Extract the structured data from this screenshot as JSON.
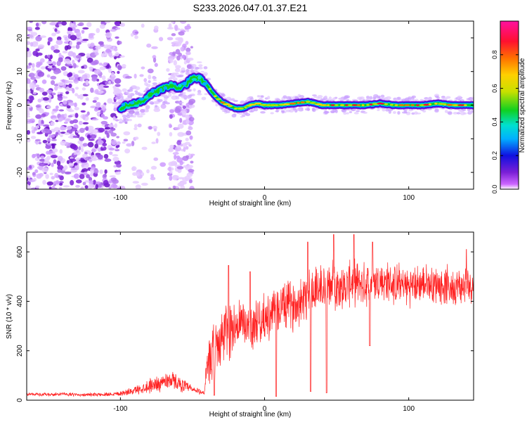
{
  "figure_title": "S233.2026.047.01.37.E21",
  "chart_data": [
    {
      "type": "heatmap",
      "title": "S233.2026.047.01.37.E21",
      "xlabel": "Height of straight line (km)",
      "ylabel": "Frequency (Hz)",
      "xlim": [
        -165,
        145
      ],
      "ylim": [
        -25,
        25
      ],
      "xticks": [
        -100,
        0,
        100
      ],
      "yticks": [
        -20,
        -10,
        0,
        10,
        20
      ],
      "colorbar": {
        "label": "Normalized spectral amplitude",
        "range": [
          0.0,
          1.0
        ],
        "ticks": [
          0.0,
          0.2,
          0.4,
          0.6,
          0.8
        ],
        "tick_labels": [
          "0.0",
          "0.2",
          "0.4",
          "0.6",
          "0.8"
        ],
        "colormap": [
          "#ffffff",
          "#cc66ff",
          "#7a1fd6",
          "#1010e0",
          "#00b0ff",
          "#00e0d0",
          "#10d020",
          "#c8e000",
          "#ffd000",
          "#ff7000",
          "#ff1030",
          "#ff10a0"
        ]
      },
      "ridge": {
        "description": "Frequency ridge of the signal",
        "x": [
          -100,
          -95,
          -90,
          -85,
          -80,
          -75,
          -70,
          -65,
          -60,
          -55,
          -50,
          -45,
          -40,
          -35,
          -30,
          -25,
          -20,
          -15,
          -10,
          -5,
          0,
          5,
          10,
          20,
          30,
          40,
          50,
          60,
          70,
          80,
          90,
          100,
          110,
          120,
          130,
          140,
          145
        ],
        "y": [
          -1,
          0,
          0.5,
          1,
          3,
          4,
          5,
          6,
          5,
          6,
          8,
          8,
          6,
          3,
          1,
          0,
          -1,
          -1,
          0,
          0.5,
          0,
          0,
          0,
          0.5,
          1,
          0,
          0,
          0,
          0,
          0.5,
          0,
          0,
          0,
          0.5,
          0,
          0,
          0
        ]
      }
    },
    {
      "type": "line",
      "xlabel": "Height of straight line (km)",
      "ylabel": "SNR (10 * v/v)",
      "xlim": [
        -165,
        145
      ],
      "ylim": [
        0,
        680
      ],
      "xticks": [
        -100,
        0,
        100
      ],
      "yticks": [
        0,
        200,
        400,
        600
      ],
      "color": "#ff2020",
      "series": [
        {
          "name": "SNR",
          "x": [
            -165,
            -150,
            -140,
            -130,
            -120,
            -110,
            -100,
            -95,
            -90,
            -85,
            -80,
            -75,
            -70,
            -65,
            -60,
            -55,
            -50,
            -45,
            -42,
            -40,
            -38,
            -35,
            -30,
            -25,
            -20,
            -15,
            -10,
            -5,
            0,
            5,
            10,
            15,
            20,
            25,
            30,
            35,
            40,
            45,
            50,
            55,
            60,
            70,
            80,
            90,
            100,
            110,
            120,
            130,
            140,
            145
          ],
          "values": [
            25,
            22,
            25,
            22,
            22,
            24,
            28,
            32,
            40,
            48,
            58,
            65,
            75,
            85,
            70,
            55,
            42,
            35,
            30,
            110,
            150,
            200,
            250,
            290,
            300,
            310,
            300,
            320,
            330,
            340,
            370,
            390,
            380,
            410,
            440,
            450,
            450,
            460,
            470,
            450,
            480,
            470,
            480,
            470,
            460,
            470,
            470,
            460,
            460,
            470
          ],
          "amplitude": [
            8,
            8,
            8,
            8,
            8,
            10,
            12,
            15,
            20,
            25,
            35,
            40,
            40,
            45,
            35,
            30,
            20,
            15,
            10,
            100,
            120,
            150,
            140,
            150,
            130,
            120,
            110,
            110,
            110,
            110,
            120,
            120,
            110,
            120,
            130,
            130,
            120,
            110,
            110,
            110,
            110,
            100,
            100,
            100,
            95,
            90,
            90,
            90,
            90,
            90
          ],
          "dips": [
            {
              "x": -35,
              "value": 20
            },
            {
              "x": 8,
              "value": 15
            },
            {
              "x": 32,
              "value": 35
            },
            {
              "x": 43,
              "value": 30
            },
            {
              "x": 73,
              "value": 220
            }
          ],
          "peaks": [
            {
              "x": -25,
              "value": 545
            },
            {
              "x": -10,
              "value": 520
            },
            {
              "x": 30,
              "value": 640
            },
            {
              "x": 48,
              "value": 670
            },
            {
              "x": 62,
              "value": 670
            },
            {
              "x": 75,
              "value": 640
            },
            {
              "x": 140,
              "value": 610
            }
          ]
        }
      ]
    }
  ]
}
